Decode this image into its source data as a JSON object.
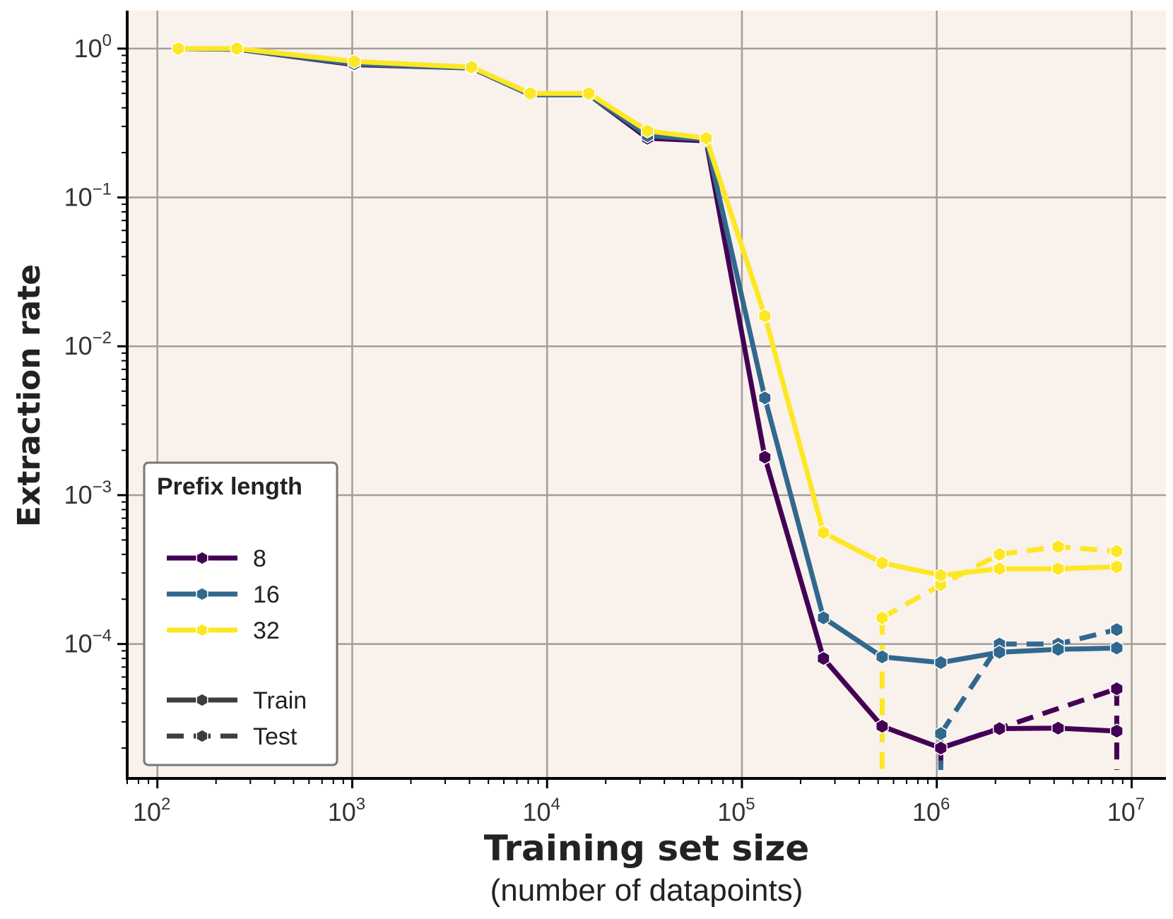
{
  "chart_data": {
    "type": "line",
    "title": "",
    "xlabel": "Training set size",
    "xlabel_sub": "(number of datapoints)",
    "ylabel": "Extraction rate",
    "x_scale": "log",
    "y_scale": "log",
    "xlim": [
      70,
      15000000
    ],
    "ylim": [
      1.25e-05,
      1.8
    ],
    "x_ticks": [
      {
        "base": "10",
        "exp": "2",
        "value": 100
      },
      {
        "base": "10",
        "exp": "3",
        "value": 1000
      },
      {
        "base": "10",
        "exp": "4",
        "value": 10000
      },
      {
        "base": "10",
        "exp": "5",
        "value": 100000
      },
      {
        "base": "10",
        "exp": "6",
        "value": 1000000
      },
      {
        "base": "10",
        "exp": "7",
        "value": 10000000
      }
    ],
    "y_ticks": [
      {
        "base": "10",
        "exp": "0",
        "value": 1
      },
      {
        "base": "10",
        "exp": "−1",
        "value": 0.1
      },
      {
        "base": "10",
        "exp": "−2",
        "value": 0.01
      },
      {
        "base": "10",
        "exp": "−3",
        "value": 0.001
      },
      {
        "base": "10",
        "exp": "−4",
        "value": 0.0001
      }
    ],
    "grid": true,
    "background": "#f8f1ec",
    "legend": {
      "title": "Prefix length",
      "placement": "lower-left",
      "split_labels": {
        "train": "Train",
        "test": "Test"
      },
      "split_color": "#3d3d3d"
    },
    "series": [
      {
        "name": "8",
        "split": "Train",
        "color": "#440154",
        "x": [
          128,
          256,
          1024,
          4096,
          8192,
          16384,
          32768,
          65536,
          131072,
          262144,
          524288,
          1048576,
          2097152,
          4194304,
          8388608
        ],
        "y": [
          1.0,
          0.99,
          0.78,
          0.74,
          0.49,
          0.49,
          0.25,
          0.24,
          0.0018,
          8e-05,
          2.8e-05,
          2e-05,
          2.7e-05,
          2.72e-05,
          2.6e-05
        ]
      },
      {
        "name": "16",
        "split": "Train",
        "color": "#31688e",
        "x": [
          128,
          256,
          1024,
          4096,
          8192,
          16384,
          32768,
          65536,
          131072,
          262144,
          524288,
          1048576,
          2097152,
          4194304,
          8388608
        ],
        "y": [
          1.0,
          0.99,
          0.79,
          0.74,
          0.49,
          0.49,
          0.26,
          0.245,
          0.0045,
          0.00015,
          8.2e-05,
          7.5e-05,
          8.8e-05,
          9.2e-05,
          9.4e-05
        ]
      },
      {
        "name": "32",
        "split": "Train",
        "color": "#fde725",
        "x": [
          128,
          256,
          1024,
          4096,
          8192,
          16384,
          32768,
          65536,
          131072,
          262144,
          524288,
          1048576,
          2097152,
          4194304,
          8388608
        ],
        "y": [
          1.0,
          1.0,
          0.82,
          0.75,
          0.5,
          0.5,
          0.28,
          0.25,
          0.016,
          0.00056,
          0.00035,
          0.00029,
          0.00032,
          0.00032,
          0.00033
        ]
      },
      {
        "name": "8",
        "split": "Test",
        "color": "#440154",
        "x": [
          1048576,
          8388608
        ],
        "y": [
          2e-05,
          5e-05
        ],
        "drop_to_axis": [
          1048576,
          8388608
        ]
      },
      {
        "name": "16",
        "split": "Test",
        "color": "#31688e",
        "x": [
          1048576,
          2097152,
          4194304,
          8388608
        ],
        "y": [
          2.5e-05,
          0.0001,
          0.0001,
          0.000125
        ],
        "drop_to_axis": [
          1048576
        ]
      },
      {
        "name": "32",
        "split": "Test",
        "color": "#fde725",
        "x": [
          524288,
          1048576,
          2097152,
          4194304,
          8388608
        ],
        "y": [
          0.00015,
          0.00025,
          0.0004,
          0.00045,
          0.00042
        ],
        "drop_to_axis": [
          524288
        ]
      }
    ]
  }
}
